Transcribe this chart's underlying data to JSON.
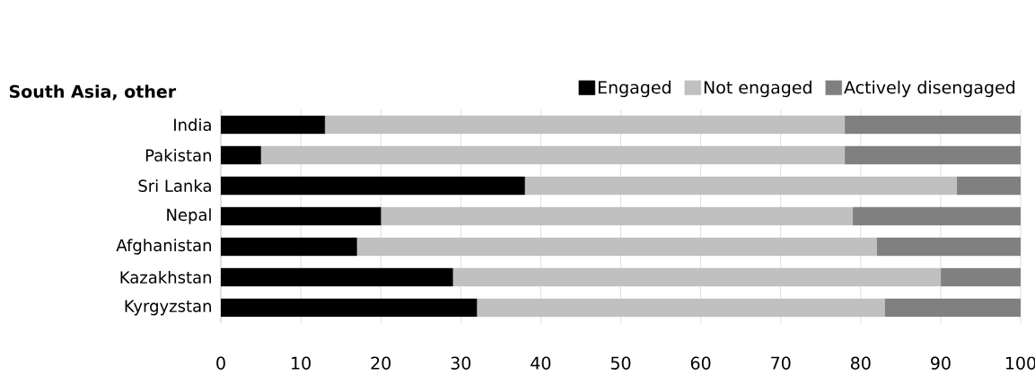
{
  "chart_data": {
    "type": "bar",
    "orientation": "horizontal",
    "stacked": true,
    "title": "South Asia, other",
    "categories": [
      "India",
      "Pakistan",
      "Sri Lanka",
      "Nepal",
      "Afghanistan",
      "Kazakhstan",
      "Kyrgyzstan"
    ],
    "series": [
      {
        "name": "Engaged",
        "color": "#000000",
        "values": [
          13,
          5,
          38,
          20,
          17,
          29,
          32
        ]
      },
      {
        "name": "Not engaged",
        "color": "#c0c0c0",
        "values": [
          65,
          73,
          54,
          59,
          65,
          61,
          51
        ]
      },
      {
        "name": "Actively disengaged",
        "color": "#808080",
        "values": [
          22,
          22,
          8,
          21,
          18,
          10,
          17
        ]
      }
    ],
    "xlim": [
      0,
      100
    ],
    "xticks": [
      0,
      10,
      20,
      30,
      40,
      50,
      60,
      70,
      80,
      90,
      100
    ],
    "grid": "x",
    "legend": "top right"
  }
}
